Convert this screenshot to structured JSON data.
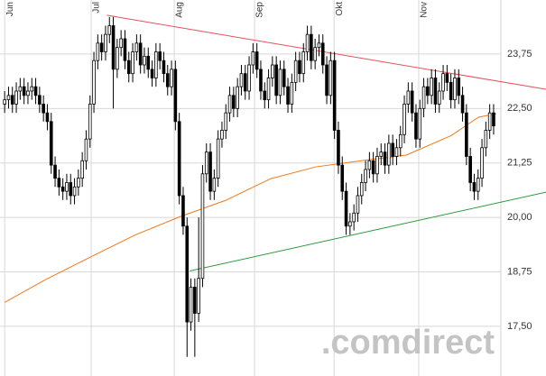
{
  "chart_data": {
    "type": "candlestick",
    "watermark": ".comdirect",
    "xlim": [
      -1.2,
      139.5
    ],
    "ylim": [
      16.36,
      24.99
    ],
    "xticks": [
      {
        "value": 0,
        "label": "Jun"
      },
      {
        "value": 22.3,
        "label": "Jul"
      },
      {
        "value": 43.7,
        "label": "Aug"
      },
      {
        "value": 64.4,
        "label": "Sep"
      },
      {
        "value": 84.9,
        "label": "Okt"
      },
      {
        "value": 106.7,
        "label": "Nov"
      }
    ],
    "yticks": [
      {
        "value": 17.5,
        "label": "17,50"
      },
      {
        "value": 18.75,
        "label": "18,75"
      },
      {
        "value": 20,
        "label": "20,00"
      },
      {
        "value": 21.25,
        "label": "21,25"
      },
      {
        "value": 22.5,
        "label": "22,50"
      },
      {
        "value": 23.75,
        "label": "23,75"
      }
    ],
    "grid": true,
    "color": "#000000",
    "open": [
      22.6,
      22.7,
      22.8,
      22.6,
      22.9,
      23.0,
      22.8,
      22.9,
      23.0,
      22.8,
      22.6,
      22.4,
      22.2,
      21.2,
      20.9,
      20.7,
      20.6,
      20.8,
      20.5,
      20.7,
      20.9,
      21.3,
      21.8,
      22.6,
      23.6,
      24.0,
      23.8,
      24.2,
      24.4,
      23.4,
      23.9,
      24.1,
      23.6,
      23.3,
      23.8,
      24.0,
      23.5,
      23.7,
      23.4,
      23.2,
      23.8,
      23.6,
      23.3,
      23.0,
      23.4,
      22.2,
      20.5,
      19.8,
      17.6,
      18.4,
      17.8,
      18.6,
      21.0,
      21.5,
      20.6,
      20.9,
      21.8,
      22.0,
      22.4,
      22.8,
      22.5,
      23.0,
      23.3,
      22.9,
      23.5,
      23.8,
      23.4,
      22.9,
      22.7,
      23.2,
      23.5,
      22.8,
      23.4,
      23.0,
      22.6,
      23.1,
      23.6,
      23.3,
      23.8,
      24.2,
      23.6,
      23.9,
      24.0,
      23.5,
      22.8,
      23.6,
      22.0,
      21.2,
      20.6,
      19.8,
      19.9,
      20.1,
      20.5,
      20.8,
      21.1,
      21.3,
      21.0,
      21.4,
      21.5,
      21.2,
      21.7,
      21.4,
      21.6,
      21.9,
      22.6,
      22.9,
      22.4,
      21.8,
      22.5,
      23.0,
      22.8,
      23.2,
      22.6,
      22.9,
      23.3,
      23.1,
      22.7,
      23.2,
      22.8,
      22.4,
      21.4,
      20.8,
      20.6,
      20.9,
      21.6,
      22.0,
      22.4
    ],
    "high": [
      22.9,
      23.0,
      23.0,
      23.1,
      23.2,
      23.2,
      23.1,
      23.2,
      23.2,
      23.0,
      22.8,
      22.6,
      22.4,
      21.4,
      21.1,
      20.9,
      21.0,
      21.0,
      20.9,
      21.1,
      21.5,
      22.0,
      22.8,
      23.8,
      24.2,
      24.2,
      24.4,
      24.6,
      24.6,
      24.1,
      24.3,
      24.3,
      23.8,
      24.0,
      24.2,
      24.2,
      23.9,
      23.9,
      23.6,
      24.0,
      24.0,
      23.8,
      23.5,
      23.6,
      23.6,
      22.4,
      20.7,
      20.0,
      18.6,
      18.6,
      20.0,
      21.2,
      21.7,
      21.7,
      21.1,
      22.0,
      22.2,
      22.6,
      23.0,
      23.0,
      23.2,
      23.5,
      23.5,
      23.7,
      24.0,
      24.0,
      23.6,
      23.1,
      23.4,
      23.7,
      23.7,
      23.6,
      23.6,
      23.2,
      23.3,
      23.8,
      23.8,
      24.0,
      24.4,
      24.4,
      24.1,
      24.2,
      24.2,
      23.7,
      23.8,
      23.8,
      22.2,
      21.4,
      20.8,
      20.1,
      20.3,
      20.7,
      21.0,
      21.3,
      21.5,
      21.5,
      21.6,
      21.7,
      21.7,
      21.9,
      21.9,
      21.8,
      22.1,
      22.8,
      23.1,
      23.1,
      22.6,
      22.7,
      23.2,
      23.2,
      23.4,
      23.4,
      23.1,
      23.5,
      23.5,
      23.3,
      23.4,
      23.4,
      23.0,
      22.6,
      21.6,
      21.0,
      21.1,
      21.8,
      22.2,
      22.6,
      22.6
    ],
    "low": [
      22.4,
      22.5,
      22.4,
      22.4,
      22.7,
      22.6,
      22.6,
      22.7,
      22.6,
      22.4,
      22.2,
      22.0,
      21.0,
      20.7,
      20.5,
      20.4,
      20.4,
      20.3,
      20.3,
      20.5,
      20.7,
      21.1,
      21.6,
      22.4,
      23.4,
      23.6,
      23.6,
      24.0,
      22.5,
      23.2,
      23.7,
      23.4,
      23.1,
      23.1,
      23.6,
      23.3,
      23.3,
      23.2,
      23.0,
      23.0,
      23.4,
      23.1,
      22.8,
      22.8,
      22.0,
      20.3,
      19.6,
      16.8,
      17.4,
      16.8,
      17.6,
      18.4,
      20.8,
      20.4,
      20.4,
      20.7,
      21.6,
      21.8,
      22.2,
      22.3,
      22.3,
      22.8,
      22.7,
      22.7,
      23.3,
      23.2,
      22.7,
      22.5,
      22.5,
      23.0,
      22.6,
      22.6,
      22.8,
      22.4,
      22.4,
      22.9,
      23.1,
      23.1,
      23.6,
      23.4,
      23.4,
      23.7,
      23.3,
      22.6,
      22.6,
      21.8,
      21.0,
      20.4,
      19.6,
      19.6,
      19.7,
      19.9,
      20.3,
      20.6,
      20.9,
      20.8,
      20.8,
      21.2,
      21.0,
      21.0,
      21.2,
      21.2,
      21.4,
      21.7,
      22.4,
      22.2,
      21.6,
      21.6,
      22.3,
      22.6,
      22.6,
      22.4,
      22.4,
      22.7,
      22.9,
      22.5,
      22.5,
      22.6,
      22.2,
      21.2,
      20.6,
      20.4,
      20.4,
      20.7,
      21.4,
      21.8,
      21.9
    ],
    "close": [
      22.7,
      22.8,
      22.6,
      22.9,
      23.0,
      22.8,
      22.9,
      23.0,
      22.8,
      22.6,
      22.4,
      22.2,
      21.2,
      20.9,
      20.7,
      20.6,
      20.8,
      20.5,
      20.7,
      20.9,
      21.3,
      21.8,
      22.6,
      23.6,
      24.0,
      23.8,
      24.2,
      24.4,
      23.4,
      23.9,
      24.1,
      23.6,
      23.3,
      23.8,
      24.0,
      23.5,
      23.7,
      23.4,
      23.2,
      23.8,
      23.6,
      23.3,
      23.0,
      23.4,
      22.2,
      20.5,
      19.8,
      17.6,
      18.4,
      17.8,
      18.6,
      21.0,
      21.5,
      20.6,
      20.9,
      21.8,
      22.0,
      22.4,
      22.8,
      22.5,
      23.0,
      23.3,
      22.9,
      23.5,
      23.8,
      23.4,
      22.9,
      22.7,
      23.2,
      23.5,
      22.8,
      23.4,
      23.0,
      22.6,
      23.1,
      23.6,
      23.3,
      23.8,
      24.2,
      23.6,
      23.9,
      24.0,
      23.5,
      22.8,
      23.6,
      22.0,
      21.2,
      20.6,
      19.8,
      19.9,
      20.1,
      20.5,
      20.8,
      21.1,
      21.3,
      21.0,
      21.4,
      21.5,
      21.2,
      21.7,
      21.4,
      21.6,
      21.9,
      22.6,
      22.9,
      22.4,
      21.8,
      22.5,
      23.0,
      22.8,
      23.2,
      22.6,
      22.9,
      23.3,
      23.1,
      22.7,
      23.2,
      22.8,
      22.4,
      21.4,
      20.8,
      20.6,
      20.9,
      21.6,
      22.0,
      22.4,
      22.1
    ],
    "lines": [
      {
        "color": "#e8505a",
        "x": [
          26.3,
          139.5
        ],
        "values": [
          24.64,
          22.94
        ]
      },
      {
        "color": "#2e9a3e",
        "x": [
          47.7,
          139.5
        ],
        "values": [
          18.77,
          20.58
        ]
      },
      {
        "color": "#f07a1a",
        "x": [
          0,
          10.5,
          22.1,
          33.7,
          45.3,
          56.9,
          68.6,
          80.2,
          91.9,
          103.5,
          115.1,
          122.1,
          126.7
        ],
        "values": [
          18.05,
          18.57,
          19.09,
          19.6,
          20.02,
          20.39,
          20.89,
          21.16,
          21.3,
          21.43,
          21.88,
          22.3,
          22.38
        ]
      }
    ]
  }
}
